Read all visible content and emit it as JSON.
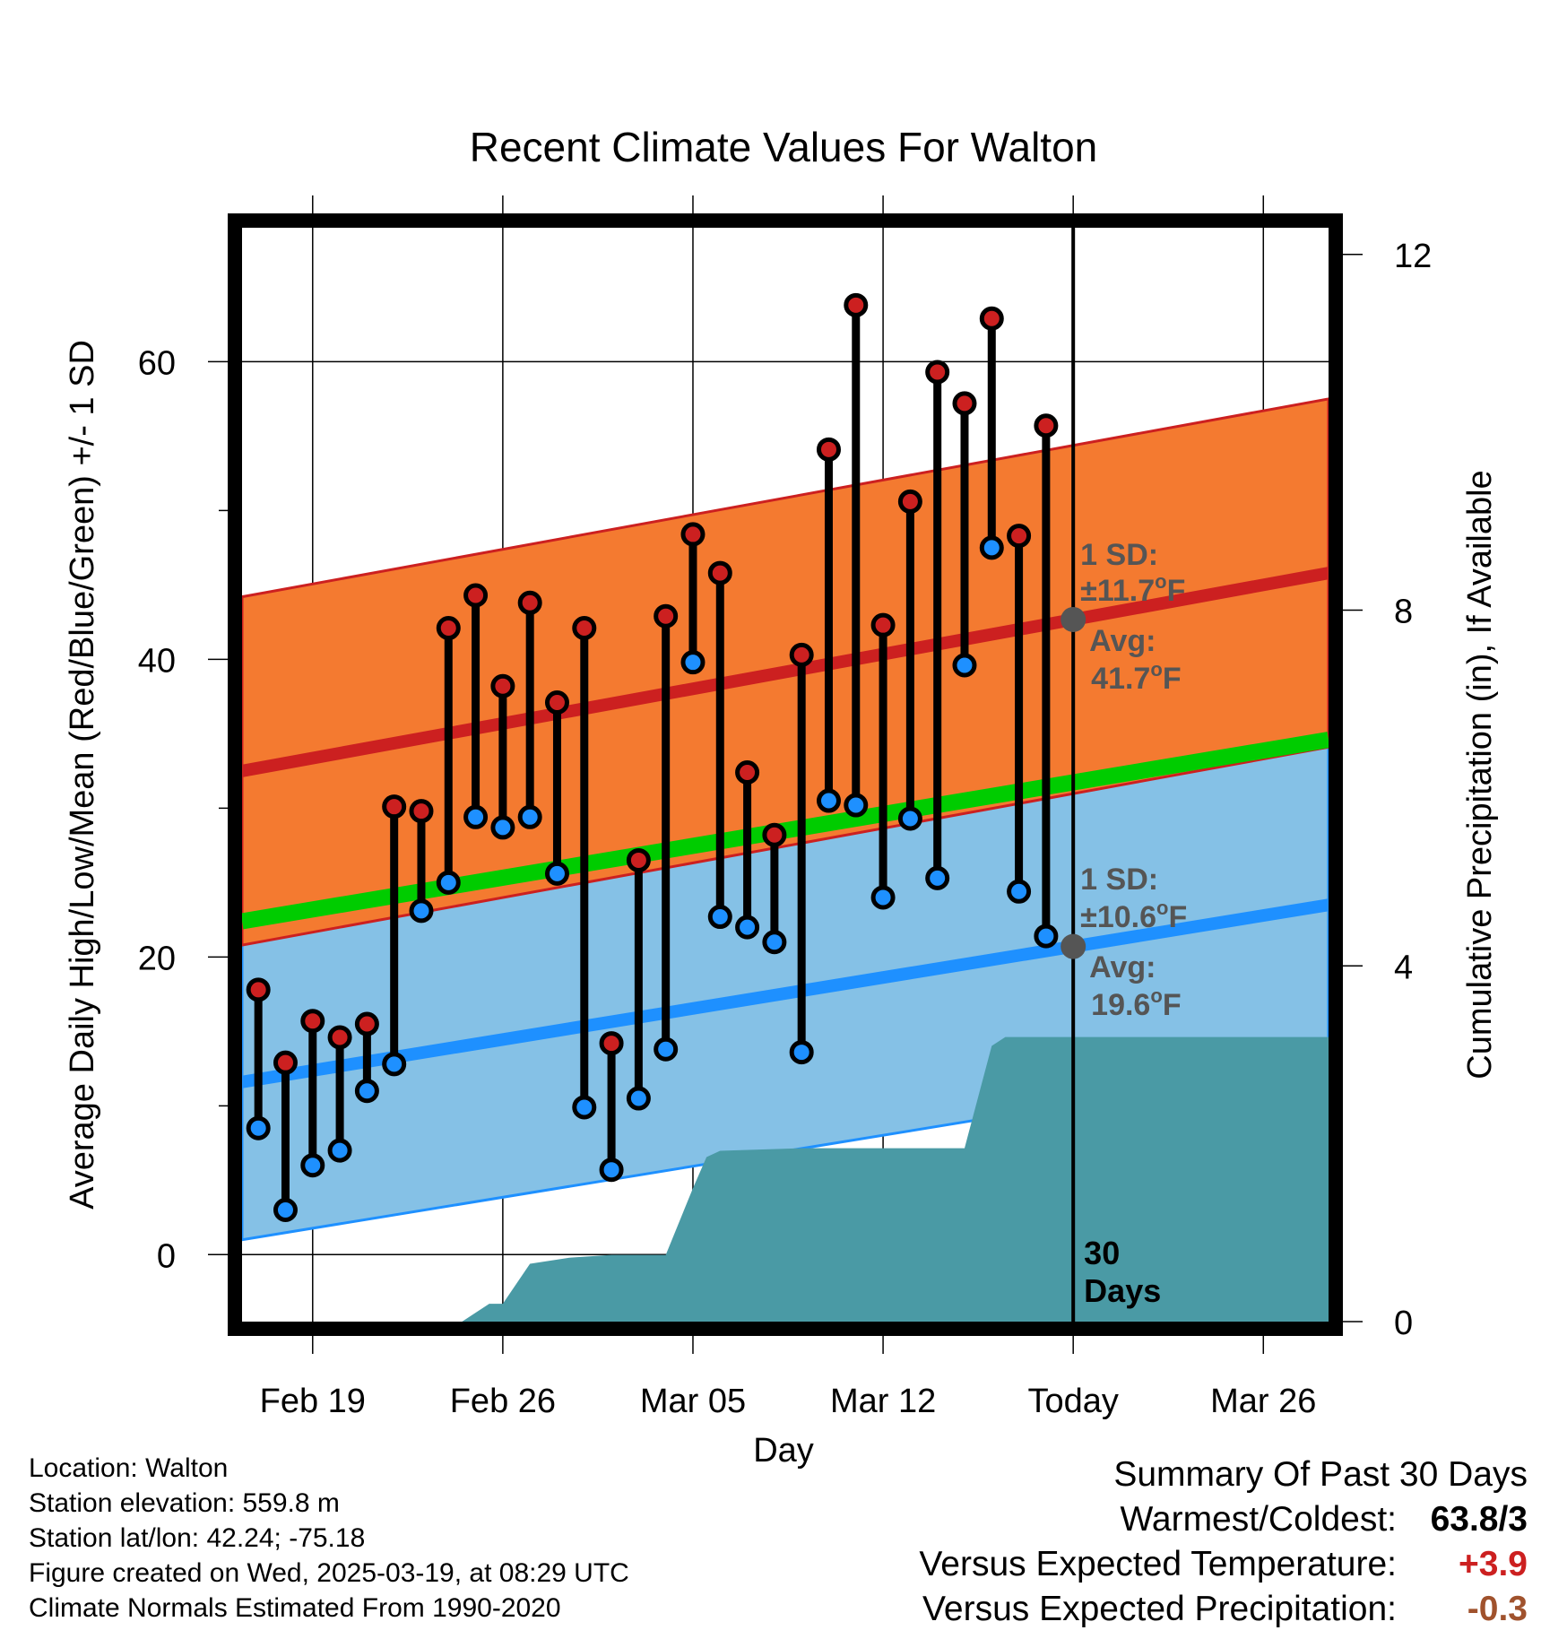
{
  "chart_data": {
    "type": "line",
    "title": "Recent Climate Values For Walton",
    "xlabel": "Day",
    "ylabel": "Average Daily High/Low/Mean (Red/Blue/Green) +/- 1 SD",
    "y2label": "Cumulative Precipitation (in), If Available",
    "x_tick_labels": [
      "Feb 19",
      "Feb 26",
      "Mar 05",
      "Mar 12",
      "Today",
      "Mar 26"
    ],
    "x_tick_days": [
      2,
      9,
      16,
      23,
      30,
      37
    ],
    "y_ticks": [
      0,
      20,
      40,
      60
    ],
    "y_range": [
      -4.5,
      69
    ],
    "y2_ticks": [
      0,
      4,
      8,
      12
    ],
    "y2_range": [
      0,
      12.3
    ],
    "day_range": [
      -0.6,
      39.4
    ],
    "today_label": "30\nDays",
    "series": [
      {
        "name": "High",
        "color": "#cc2020",
        "days": [
          0,
          1,
          2,
          3,
          4,
          5,
          6,
          7,
          8,
          9,
          10,
          11,
          12,
          13,
          14,
          15,
          16,
          17,
          18,
          19,
          20,
          21,
          22,
          23,
          24,
          25,
          26,
          27,
          28,
          29
        ],
        "values": [
          17.8,
          12.9,
          15.7,
          14.6,
          15.5,
          30.1,
          29.8,
          42.1,
          44.3,
          38.2,
          43.8,
          37.1,
          42.1,
          14.2,
          26.5,
          42.9,
          48.4,
          45.8,
          32.4,
          28.2,
          40.3,
          54.1,
          63.8,
          42.3,
          50.6,
          59.3,
          57.2,
          62.9,
          48.3,
          55.7
        ]
      },
      {
        "name": "Low",
        "color": "#1e90ff",
        "days": [
          0,
          1,
          2,
          3,
          4,
          5,
          6,
          7,
          8,
          9,
          10,
          11,
          12,
          13,
          14,
          15,
          16,
          17,
          18,
          19,
          20,
          21,
          22,
          23,
          24,
          25,
          26,
          27,
          28,
          29
        ],
        "values": [
          8.5,
          3.0,
          6.0,
          7.0,
          11.0,
          12.8,
          23.1,
          25.0,
          29.4,
          28.7,
          29.4,
          25.6,
          9.9,
          5.7,
          10.5,
          13.8,
          39.8,
          22.7,
          22.0,
          21.0,
          13.6,
          30.5,
          30.2,
          24.0,
          29.3,
          25.3,
          39.6,
          47.5,
          24.4,
          21.4
        ]
      },
      {
        "name": "Normal High",
        "color": "#cc2020",
        "days": [
          -0.6,
          39.4
        ],
        "values": [
          32.5,
          45.8
        ],
        "sd": 11.7
      },
      {
        "name": "Normal Low",
        "color": "#1e90ff",
        "days": [
          -0.6,
          39.4
        ],
        "values": [
          11.6,
          23.5
        ],
        "sd": 10.6
      },
      {
        "name": "Normal Mean",
        "color": "#00cc00",
        "days": [
          -0.6,
          39.4
        ],
        "values": [
          22.4,
          34.6
        ]
      },
      {
        "name": "Cumulative Precipitation",
        "color": "#4a9aa5",
        "days": [
          -0.6,
          7.5,
          8.5,
          9,
          10,
          11.5,
          13,
          15,
          16,
          16.5,
          17,
          20,
          23,
          26,
          27,
          27.5,
          30,
          39.4
        ],
        "values": [
          0,
          0,
          0.2,
          0.2,
          0.65,
          0.72,
          0.75,
          0.75,
          1.5,
          1.85,
          1.92,
          1.95,
          1.95,
          1.95,
          3.1,
          3.2,
          3.2,
          3.2
        ]
      }
    ],
    "annotations": {
      "high_sd_label": "1 SD:",
      "high_sd_value": "±11.7",
      "high_avg_label": "Avg:",
      "high_avg_value": "41.7",
      "low_sd_label": "1 SD:",
      "low_sd_value": "±10.6",
      "low_avg_label": "Avg:",
      "low_avg_value": "19.6",
      "unit": "F",
      "degree": "o"
    },
    "colors": {
      "high_band": "#f47a30",
      "low_band": "#85c1e6",
      "high_dot": "#cc2020",
      "low_dot": "#1e90ff",
      "precip_fill": "#4a9aa5",
      "avg_marker": "#555555"
    }
  },
  "info": {
    "location": "Location: Walton",
    "elevation": "Station elevation: 559.8 m",
    "latlon": "Station lat/lon: 42.24; -75.18",
    "created": "Figure created on Wed, 2025-03-19, at 08:29 UTC",
    "normals": "Climate Normals Estimated From 1990-2020"
  },
  "summary": {
    "heading": "Summary Of Past 30 Days",
    "warm_cold_label": "Warmest/Coldest:",
    "warm_cold_value": "63.8/3",
    "temp_label": "Versus Expected Temperature:",
    "temp_value": "+3.9",
    "temp_color": "#cc2020",
    "precip_label": "Versus Expected Precipitation:",
    "precip_value": "-0.3",
    "precip_color": "#a0522d"
  }
}
